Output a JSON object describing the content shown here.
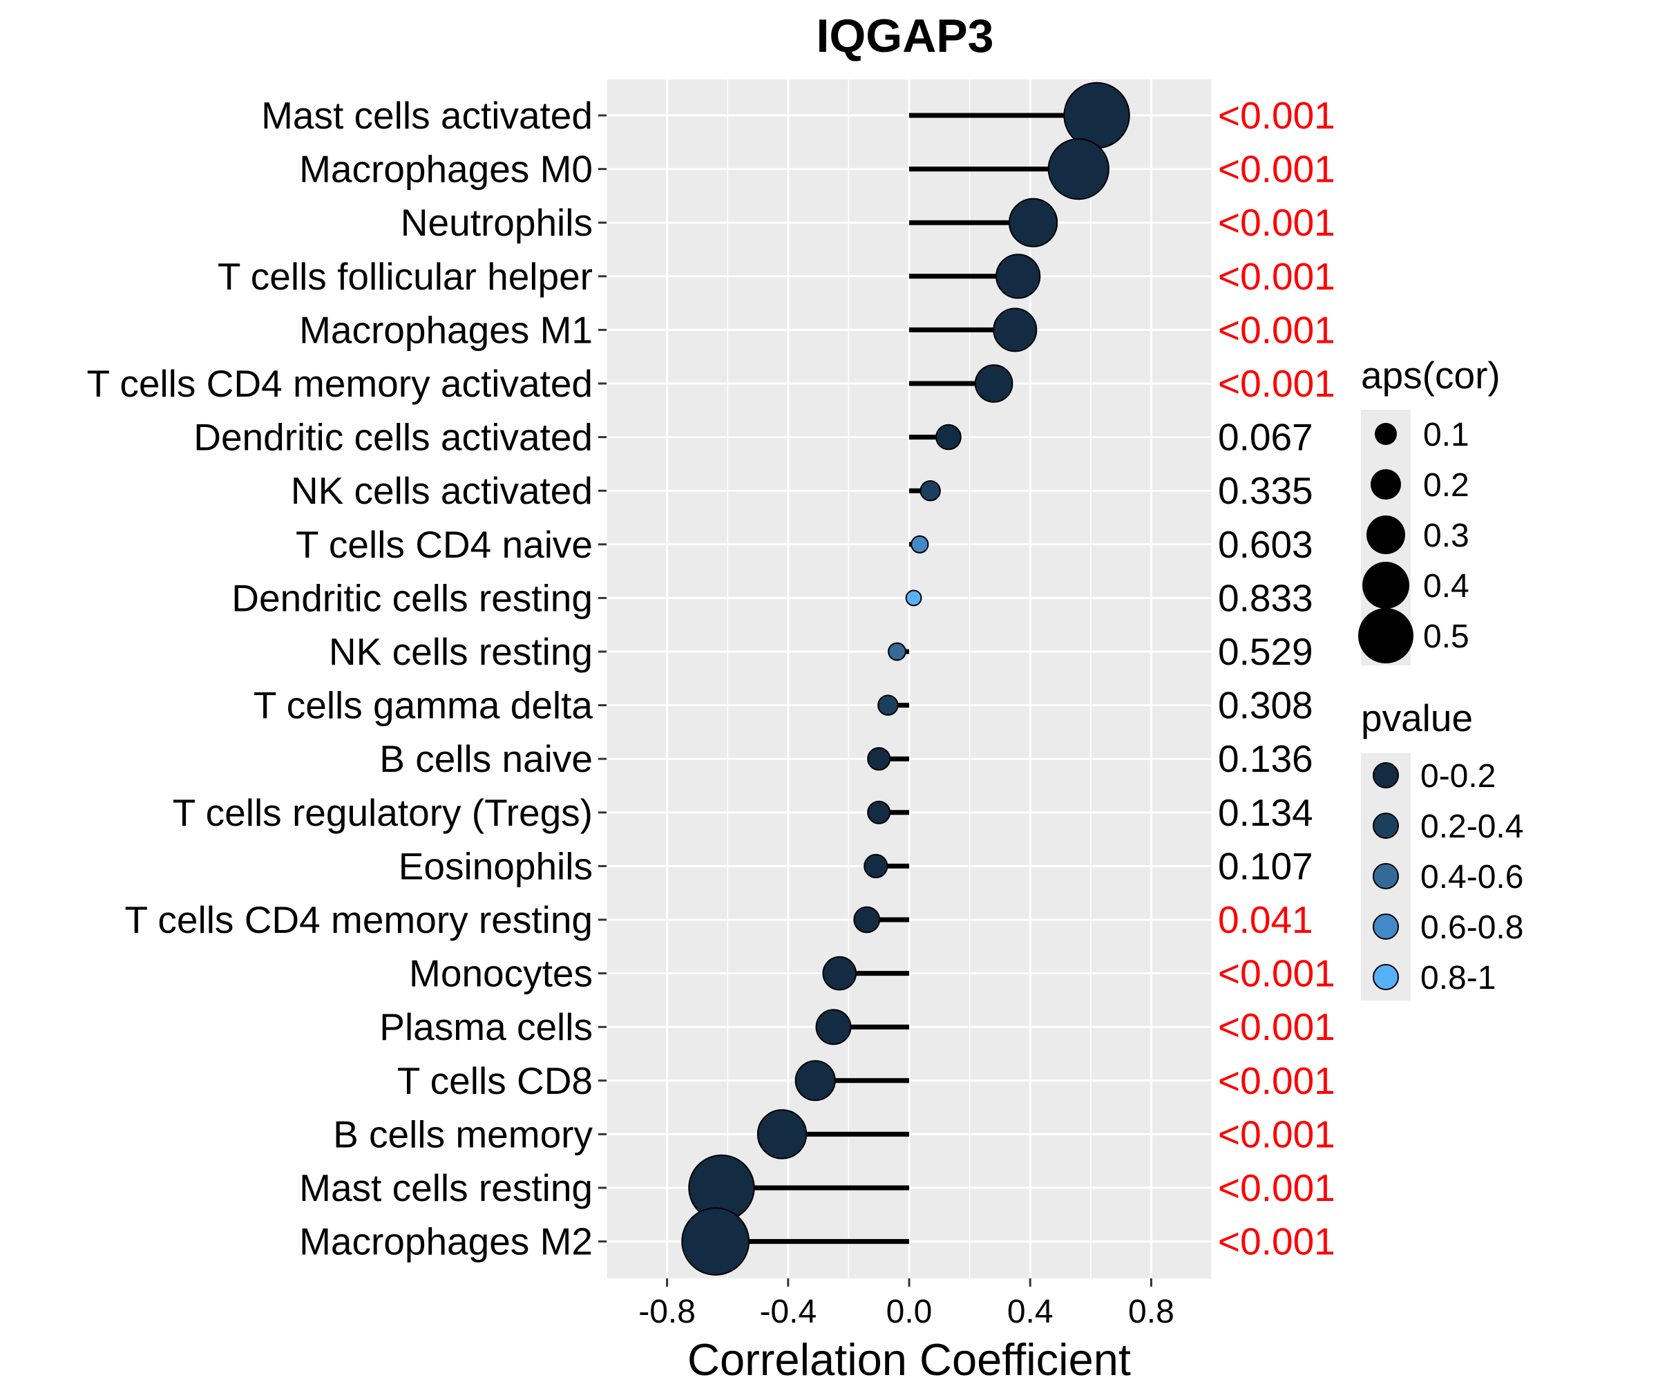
{
  "chart_data": {
    "type": "lollipop",
    "title": "IQGAP3",
    "xlabel": "Correlation Coefficient",
    "ylabel": "",
    "xlim": [
      -1.0,
      1.0
    ],
    "xticks": [
      -0.8,
      -0.4,
      0.0,
      0.4,
      0.8
    ],
    "xtick_labels": [
      "-0.8",
      "-0.4",
      "0.0",
      "0.4",
      "0.8"
    ],
    "grid": true,
    "colors": {
      "panel_bg": "#EBEBEB",
      "grid": "#FFFFFF",
      "stem": "#000000",
      "significant_text": "#FF0000",
      "normal_text": "#000000",
      "pvalue_bins": [
        "#132B43",
        "#1D3F5E",
        "#336A98",
        "#4289C8",
        "#56B1F7"
      ]
    },
    "points": [
      {
        "cell": "Mast cells activated",
        "cor": 0.62,
        "pvalue_label": "<0.001",
        "significant": true,
        "pbin": 0
      },
      {
        "cell": "Macrophages M0",
        "cor": 0.56,
        "pvalue_label": "<0.001",
        "significant": true,
        "pbin": 0
      },
      {
        "cell": "Neutrophils",
        "cor": 0.41,
        "pvalue_label": "<0.001",
        "significant": true,
        "pbin": 0
      },
      {
        "cell": "T cells follicular helper",
        "cor": 0.36,
        "pvalue_label": "<0.001",
        "significant": true,
        "pbin": 0
      },
      {
        "cell": "Macrophages M1",
        "cor": 0.35,
        "pvalue_label": "<0.001",
        "significant": true,
        "pbin": 0
      },
      {
        "cell": "T cells CD4 memory activated",
        "cor": 0.28,
        "pvalue_label": "<0.001",
        "significant": true,
        "pbin": 0
      },
      {
        "cell": "Dendritic cells activated",
        "cor": 0.13,
        "pvalue_label": "0.067",
        "significant": false,
        "pbin": 0
      },
      {
        "cell": "NK cells activated",
        "cor": 0.07,
        "pvalue_label": "0.335",
        "significant": false,
        "pbin": 1
      },
      {
        "cell": "T cells CD4 naive",
        "cor": 0.035,
        "pvalue_label": "0.603",
        "significant": false,
        "pbin": 3
      },
      {
        "cell": "Dendritic cells resting",
        "cor": 0.015,
        "pvalue_label": "0.833",
        "significant": false,
        "pbin": 4
      },
      {
        "cell": "NK cells resting",
        "cor": -0.04,
        "pvalue_label": "0.529",
        "significant": false,
        "pbin": 2
      },
      {
        "cell": "T cells gamma delta",
        "cor": -0.07,
        "pvalue_label": "0.308",
        "significant": false,
        "pbin": 1
      },
      {
        "cell": "B cells naive",
        "cor": -0.1,
        "pvalue_label": "0.136",
        "significant": false,
        "pbin": 0
      },
      {
        "cell": "T cells regulatory (Tregs)",
        "cor": -0.1,
        "pvalue_label": "0.134",
        "significant": false,
        "pbin": 0
      },
      {
        "cell": "Eosinophils",
        "cor": -0.11,
        "pvalue_label": "0.107",
        "significant": false,
        "pbin": 0
      },
      {
        "cell": "T cells CD4 memory resting",
        "cor": -0.14,
        "pvalue_label": "0.041",
        "significant": true,
        "pbin": 0
      },
      {
        "cell": "Monocytes",
        "cor": -0.23,
        "pvalue_label": "<0.001",
        "significant": true,
        "pbin": 0
      },
      {
        "cell": "Plasma cells",
        "cor": -0.25,
        "pvalue_label": "<0.001",
        "significant": true,
        "pbin": 0
      },
      {
        "cell": "T cells CD8",
        "cor": -0.31,
        "pvalue_label": "<0.001",
        "significant": true,
        "pbin": 0
      },
      {
        "cell": "B cells memory",
        "cor": -0.42,
        "pvalue_label": "<0.001",
        "significant": true,
        "pbin": 0
      },
      {
        "cell": "Mast cells resting",
        "cor": -0.62,
        "pvalue_label": "<0.001",
        "significant": true,
        "pbin": 0
      },
      {
        "cell": "Macrophages M2",
        "cor": -0.64,
        "pvalue_label": "<0.001",
        "significant": true,
        "pbin": 0
      }
    ],
    "legend": {
      "placement": "right",
      "size_title": "aps(cor)",
      "size_labels": [
        "0.1",
        "0.2",
        "0.3",
        "0.4",
        "0.5"
      ],
      "size_values": [
        0.1,
        0.2,
        0.3,
        0.4,
        0.5
      ],
      "color_title": "pvalue",
      "color_labels": [
        "0-0.2",
        "0.2-0.4",
        "0.4-0.6",
        "0.6-0.8",
        "0.8-1"
      ]
    }
  }
}
